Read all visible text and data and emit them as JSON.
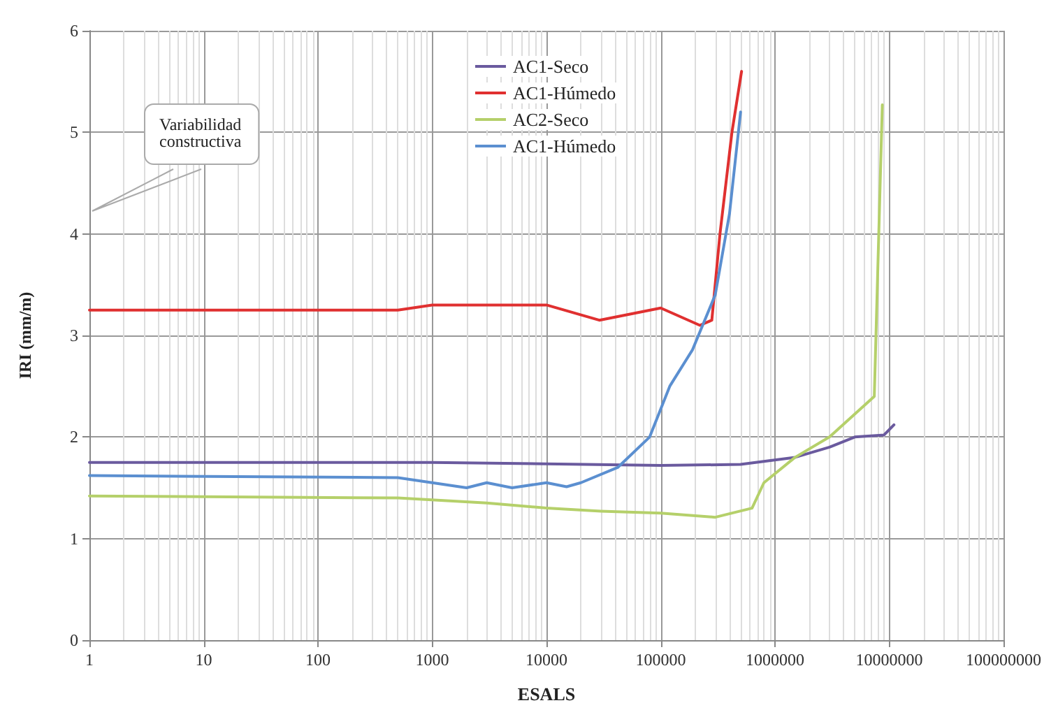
{
  "chart_data": {
    "type": "line",
    "xlabel": "ESALS",
    "ylabel": "IRI (mm/m)",
    "log": "x",
    "grid": true,
    "legend": "top",
    "marker": "none",
    "line_style": "solid",
    "xlim": [
      1,
      100000000
    ],
    "xticks": [
      1,
      10,
      100,
      1000,
      10000,
      100000,
      1000000,
      10000000,
      100000000
    ],
    "ylim": [
      0,
      6
    ],
    "yticks": [
      0,
      1,
      2,
      3,
      4,
      5,
      6
    ],
    "annotations": [
      "Variabilidad\nconstructiva"
    ],
    "series": [
      {
        "name": "AC1-Seco",
        "color": "#6a5a9e",
        "x": [
          1,
          1000,
          100000,
          500000,
          1500000,
          3000000,
          5000000,
          9000000,
          11000000
        ],
        "values": [
          1.75,
          1.75,
          1.72,
          1.73,
          1.8,
          1.9,
          2.0,
          2.02,
          2.12
        ]
      },
      {
        "name": "AC1-Húmedo",
        "color": "#e03030",
        "x": [
          1,
          500,
          1000,
          10000,
          29000,
          100000,
          220000,
          280000,
          330000,
          420000,
          510000
        ],
        "values": [
          3.25,
          3.25,
          3.3,
          3.3,
          3.15,
          3.27,
          3.1,
          3.15,
          4.0,
          5.0,
          5.6
        ]
      },
      {
        "name": "AC2-Seco",
        "color": "#b5d06a",
        "x": [
          1,
          500,
          3000,
          10000,
          30000,
          100000,
          300000,
          630000,
          800000,
          1500000,
          3000000,
          7400000,
          8700000
        ],
        "values": [
          1.42,
          1.4,
          1.35,
          1.3,
          1.27,
          1.25,
          1.21,
          1.3,
          1.55,
          1.8,
          2.0,
          2.4,
          5.27
        ]
      },
      {
        "name": "AC1-Húmedo",
        "color": "#5b8fd0",
        "x": [
          1,
          500,
          1000,
          2000,
          3000,
          5000,
          10000,
          15000,
          20000,
          42000,
          80000,
          120000,
          190000,
          300000,
          400000,
          500000
        ],
        "values": [
          1.62,
          1.6,
          1.55,
          1.5,
          1.55,
          1.5,
          1.55,
          1.51,
          1.55,
          1.7,
          2.0,
          2.5,
          2.86,
          3.4,
          4.2,
          5.2
        ]
      }
    ]
  }
}
